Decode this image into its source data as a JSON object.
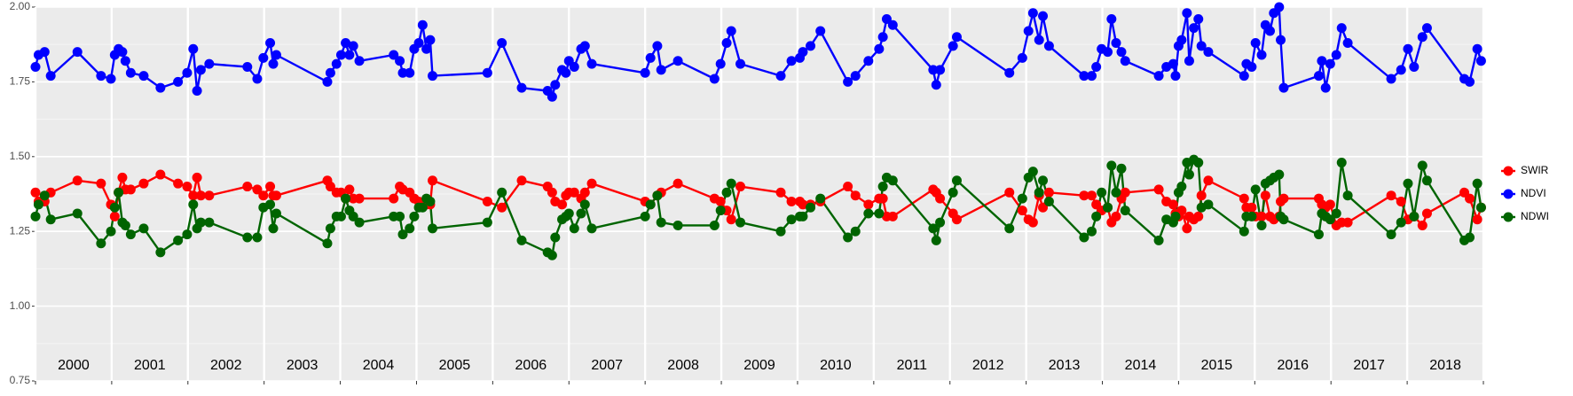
{
  "chart_data": {
    "type": "line",
    "x": [
      2000.0,
      2000.04,
      2000.12,
      2000.2,
      2000.55,
      2000.86,
      2000.99,
      2001.04,
      2001.09,
      2001.14,
      2001.18,
      2001.25,
      2001.42,
      2001.64,
      2001.87,
      2001.99,
      2002.07,
      2002.12,
      2002.17,
      2002.28,
      2002.78,
      2002.91,
      2002.99,
      2003.08,
      2003.12,
      2003.16,
      2003.83,
      2003.87,
      2003.95,
      2004.01,
      2004.07,
      2004.12,
      2004.17,
      2004.25,
      2004.7,
      2004.78,
      2004.82,
      2004.91,
      2004.97,
      2005.03,
      2005.08,
      2005.13,
      2005.18,
      2005.21,
      2005.93,
      2006.12,
      2006.38,
      2006.72,
      2006.78,
      2006.82,
      2006.91,
      2006.96,
      2007.0,
      2007.07,
      2007.16,
      2007.21,
      2007.3,
      2008.0,
      2008.07,
      2008.16,
      2008.21,
      2008.43,
      2008.91,
      2008.99,
      2009.07,
      2009.13,
      2009.25,
      2009.78,
      2009.92,
      2010.03,
      2010.07,
      2010.17,
      2010.3,
      2010.66,
      2010.76,
      2010.93,
      2011.07,
      2011.12,
      2011.17,
      2011.25,
      2011.78,
      2011.82,
      2011.87,
      2012.04,
      2012.09,
      2012.78,
      2012.95,
      2013.03,
      2013.09,
      2013.17,
      2013.22,
      2013.3,
      2013.76,
      2013.86,
      2013.92,
      2013.99,
      2014.07,
      2014.12,
      2014.18,
      2014.25,
      2014.3,
      2014.74,
      2014.84,
      2014.93,
      2014.96,
      2015.0,
      2015.04,
      2015.11,
      2015.14,
      2015.2,
      2015.26,
      2015.3,
      2015.39,
      2015.86,
      2015.89,
      2015.96,
      2016.01,
      2016.09,
      2016.14,
      2016.2,
      2016.25,
      2016.32,
      2016.34,
      2016.38,
      2016.84,
      2016.88,
      2016.93,
      2016.99,
      2017.07,
      2017.14,
      2017.22,
      2017.79,
      2017.92,
      2018.01,
      2018.09,
      2018.2,
      2018.26,
      2018.75,
      2018.82,
      2018.92,
      2018.97
    ],
    "series": [
      {
        "name": "SWIR",
        "color": "#ff0000",
        "values": [
          1.38,
          1.35,
          1.35,
          1.38,
          1.42,
          1.41,
          1.34,
          1.3,
          1.38,
          1.43,
          1.39,
          1.39,
          1.41,
          1.44,
          1.41,
          1.4,
          1.37,
          1.43,
          1.37,
          1.37,
          1.4,
          1.39,
          1.37,
          1.4,
          1.37,
          1.37,
          1.42,
          1.4,
          1.38,
          1.38,
          1.36,
          1.39,
          1.36,
          1.36,
          1.36,
          1.4,
          1.39,
          1.38,
          1.36,
          1.35,
          1.34,
          1.34,
          1.34,
          1.42,
          1.35,
          1.33,
          1.42,
          1.4,
          1.38,
          1.35,
          1.34,
          1.37,
          1.38,
          1.38,
          1.36,
          1.38,
          1.41,
          1.35,
          1.34,
          1.37,
          1.38,
          1.41,
          1.36,
          1.35,
          1.32,
          1.29,
          1.4,
          1.38,
          1.35,
          1.35,
          1.34,
          1.34,
          1.35,
          1.4,
          1.37,
          1.34,
          1.36,
          1.36,
          1.3,
          1.3,
          1.39,
          1.38,
          1.36,
          1.31,
          1.29,
          1.38,
          1.32,
          1.29,
          1.28,
          1.37,
          1.33,
          1.38,
          1.37,
          1.37,
          1.34,
          1.32,
          1.33,
          1.28,
          1.3,
          1.36,
          1.38,
          1.39,
          1.35,
          1.34,
          1.31,
          1.3,
          1.32,
          1.26,
          1.3,
          1.29,
          1.3,
          1.37,
          1.42,
          1.36,
          1.33,
          1.33,
          1.3,
          1.3,
          1.37,
          1.3,
          1.29,
          1.3,
          1.35,
          1.36,
          1.36,
          1.34,
          1.33,
          1.34,
          1.27,
          1.28,
          1.28,
          1.37,
          1.35,
          1.29,
          1.3,
          1.27,
          1.31,
          1.38,
          1.36,
          1.29,
          1.33
        ]
      },
      {
        "name": "NDVI",
        "color": "#0000ff",
        "values": [
          1.8,
          1.84,
          1.85,
          1.77,
          1.85,
          1.77,
          1.76,
          1.84,
          1.86,
          1.85,
          1.82,
          1.78,
          1.77,
          1.73,
          1.75,
          1.78,
          1.86,
          1.72,
          1.79,
          1.81,
          1.8,
          1.76,
          1.83,
          1.88,
          1.81,
          1.84,
          1.75,
          1.78,
          1.81,
          1.84,
          1.88,
          1.84,
          1.87,
          1.82,
          1.84,
          1.82,
          1.78,
          1.78,
          1.86,
          1.88,
          1.94,
          1.86,
          1.89,
          1.77,
          1.78,
          1.88,
          1.73,
          1.72,
          1.7,
          1.74,
          1.79,
          1.78,
          1.82,
          1.8,
          1.86,
          1.87,
          1.81,
          1.78,
          1.83,
          1.87,
          1.79,
          1.82,
          1.76,
          1.81,
          1.88,
          1.92,
          1.81,
          1.77,
          1.82,
          1.83,
          1.85,
          1.87,
          1.92,
          1.75,
          1.77,
          1.82,
          1.86,
          1.9,
          1.96,
          1.94,
          1.79,
          1.74,
          1.79,
          1.87,
          1.9,
          1.78,
          1.83,
          1.92,
          1.98,
          1.89,
          1.97,
          1.87,
          1.77,
          1.77,
          1.8,
          1.86,
          1.85,
          1.96,
          1.88,
          1.85,
          1.82,
          1.77,
          1.8,
          1.81,
          1.77,
          1.87,
          1.89,
          1.98,
          1.82,
          1.93,
          1.96,
          1.87,
          1.85,
          1.77,
          1.81,
          1.8,
          1.88,
          1.84,
          1.94,
          1.92,
          1.98,
          2.0,
          1.89,
          1.73,
          1.77,
          1.82,
          1.73,
          1.81,
          1.84,
          1.93,
          1.88,
          1.76,
          1.79,
          1.86,
          1.8,
          1.9,
          1.93,
          1.76,
          1.75,
          1.86,
          1.82
        ]
      },
      {
        "name": "NDWI",
        "color": "#006400",
        "values": [
          1.3,
          1.34,
          1.37,
          1.29,
          1.31,
          1.21,
          1.25,
          1.33,
          1.38,
          1.28,
          1.27,
          1.24,
          1.26,
          1.18,
          1.22,
          1.24,
          1.34,
          1.26,
          1.28,
          1.28,
          1.23,
          1.23,
          1.33,
          1.34,
          1.26,
          1.31,
          1.21,
          1.26,
          1.3,
          1.3,
          1.36,
          1.32,
          1.3,
          1.28,
          1.3,
          1.3,
          1.24,
          1.26,
          1.3,
          1.33,
          1.33,
          1.36,
          1.35,
          1.26,
          1.28,
          1.38,
          1.22,
          1.18,
          1.17,
          1.23,
          1.29,
          1.3,
          1.31,
          1.26,
          1.31,
          1.34,
          1.26,
          1.3,
          1.34,
          1.37,
          1.28,
          1.27,
          1.27,
          1.32,
          1.38,
          1.41,
          1.28,
          1.25,
          1.29,
          1.3,
          1.3,
          1.33,
          1.36,
          1.23,
          1.25,
          1.31,
          1.31,
          1.4,
          1.43,
          1.42,
          1.26,
          1.22,
          1.28,
          1.38,
          1.42,
          1.26,
          1.36,
          1.43,
          1.45,
          1.38,
          1.42,
          1.35,
          1.23,
          1.25,
          1.3,
          1.38,
          1.33,
          1.47,
          1.38,
          1.46,
          1.32,
          1.22,
          1.29,
          1.28,
          1.3,
          1.38,
          1.4,
          1.48,
          1.44,
          1.49,
          1.48,
          1.33,
          1.34,
          1.25,
          1.3,
          1.3,
          1.39,
          1.27,
          1.41,
          1.42,
          1.43,
          1.44,
          1.3,
          1.29,
          1.24,
          1.31,
          1.3,
          1.29,
          1.31,
          1.48,
          1.37,
          1.24,
          1.28,
          1.41,
          1.3,
          1.47,
          1.42,
          1.22,
          1.23,
          1.41,
          1.33
        ]
      }
    ],
    "xlim": [
      2000,
      2019
    ],
    "xticks": [
      2000,
      2001,
      2002,
      2003,
      2004,
      2005,
      2006,
      2007,
      2008,
      2009,
      2010,
      2011,
      2012,
      2013,
      2014,
      2015,
      2016,
      2017,
      2018,
      2019
    ],
    "year_labels": [
      "2000",
      "2001",
      "2002",
      "2003",
      "2004",
      "2005",
      "2006",
      "2007",
      "2008",
      "2009",
      "2010",
      "2011",
      "2012",
      "2013",
      "2014",
      "2015",
      "2016",
      "2017",
      "2018"
    ],
    "ylim": [
      0.75,
      2.0
    ],
    "yticks": [
      {
        "value": 0.75,
        "label": "0.75"
      },
      {
        "value": 1.0,
        "label": "1.00"
      },
      {
        "value": 1.25,
        "label": "1.25"
      },
      {
        "value": 1.5,
        "label": "1.50"
      },
      {
        "value": 1.75,
        "label": "1.75"
      },
      {
        "value": 2.0,
        "label": "2.00"
      }
    ],
    "grid": true,
    "legend": "right"
  }
}
